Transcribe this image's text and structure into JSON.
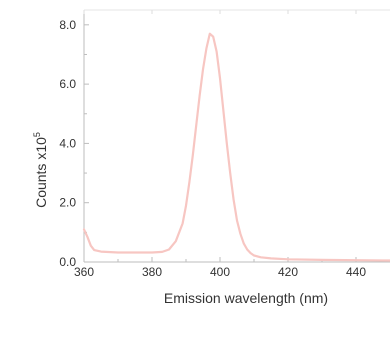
{
  "chart_data": {
    "type": "line",
    "title": "",
    "xlabel": "Emission wavelength (nm)",
    "ylabel_base": "Counts x10",
    "ylabel_exponent": "5",
    "xlim": [
      360,
      450
    ],
    "ylim": [
      0,
      8.5
    ],
    "x_ticks": [
      360,
      380,
      400,
      420,
      440
    ],
    "x_tick_labels": [
      "360",
      "380",
      "400",
      "420",
      "440"
    ],
    "y_ticks": [
      0,
      2,
      4,
      6,
      8
    ],
    "y_tick_labels": [
      "0.0",
      "2.0",
      "4.0",
      "6.0",
      "8.0"
    ],
    "grid": false,
    "line_color": "#f7c6c2",
    "axis_color": "#bdbdbd",
    "series": [
      {
        "x": [
          360,
          361,
          362,
          363,
          365,
          370,
          375,
          380,
          383,
          385,
          387,
          389,
          390,
          391,
          392,
          393,
          394,
          395,
          396,
          397,
          398,
          399,
          400,
          401,
          402,
          403,
          404,
          405,
          406,
          407,
          408,
          409,
          410,
          412,
          415,
          420,
          430,
          440,
          450
        ],
        "y": [
          1.1,
          0.85,
          0.55,
          0.4,
          0.35,
          0.32,
          0.32,
          0.32,
          0.34,
          0.42,
          0.7,
          1.3,
          1.9,
          2.7,
          3.6,
          4.6,
          5.6,
          6.5,
          7.2,
          7.7,
          7.6,
          7.1,
          6.2,
          5.1,
          4.0,
          3.0,
          2.1,
          1.4,
          0.95,
          0.62,
          0.42,
          0.3,
          0.22,
          0.16,
          0.12,
          0.09,
          0.07,
          0.06,
          0.05
        ]
      }
    ]
  }
}
